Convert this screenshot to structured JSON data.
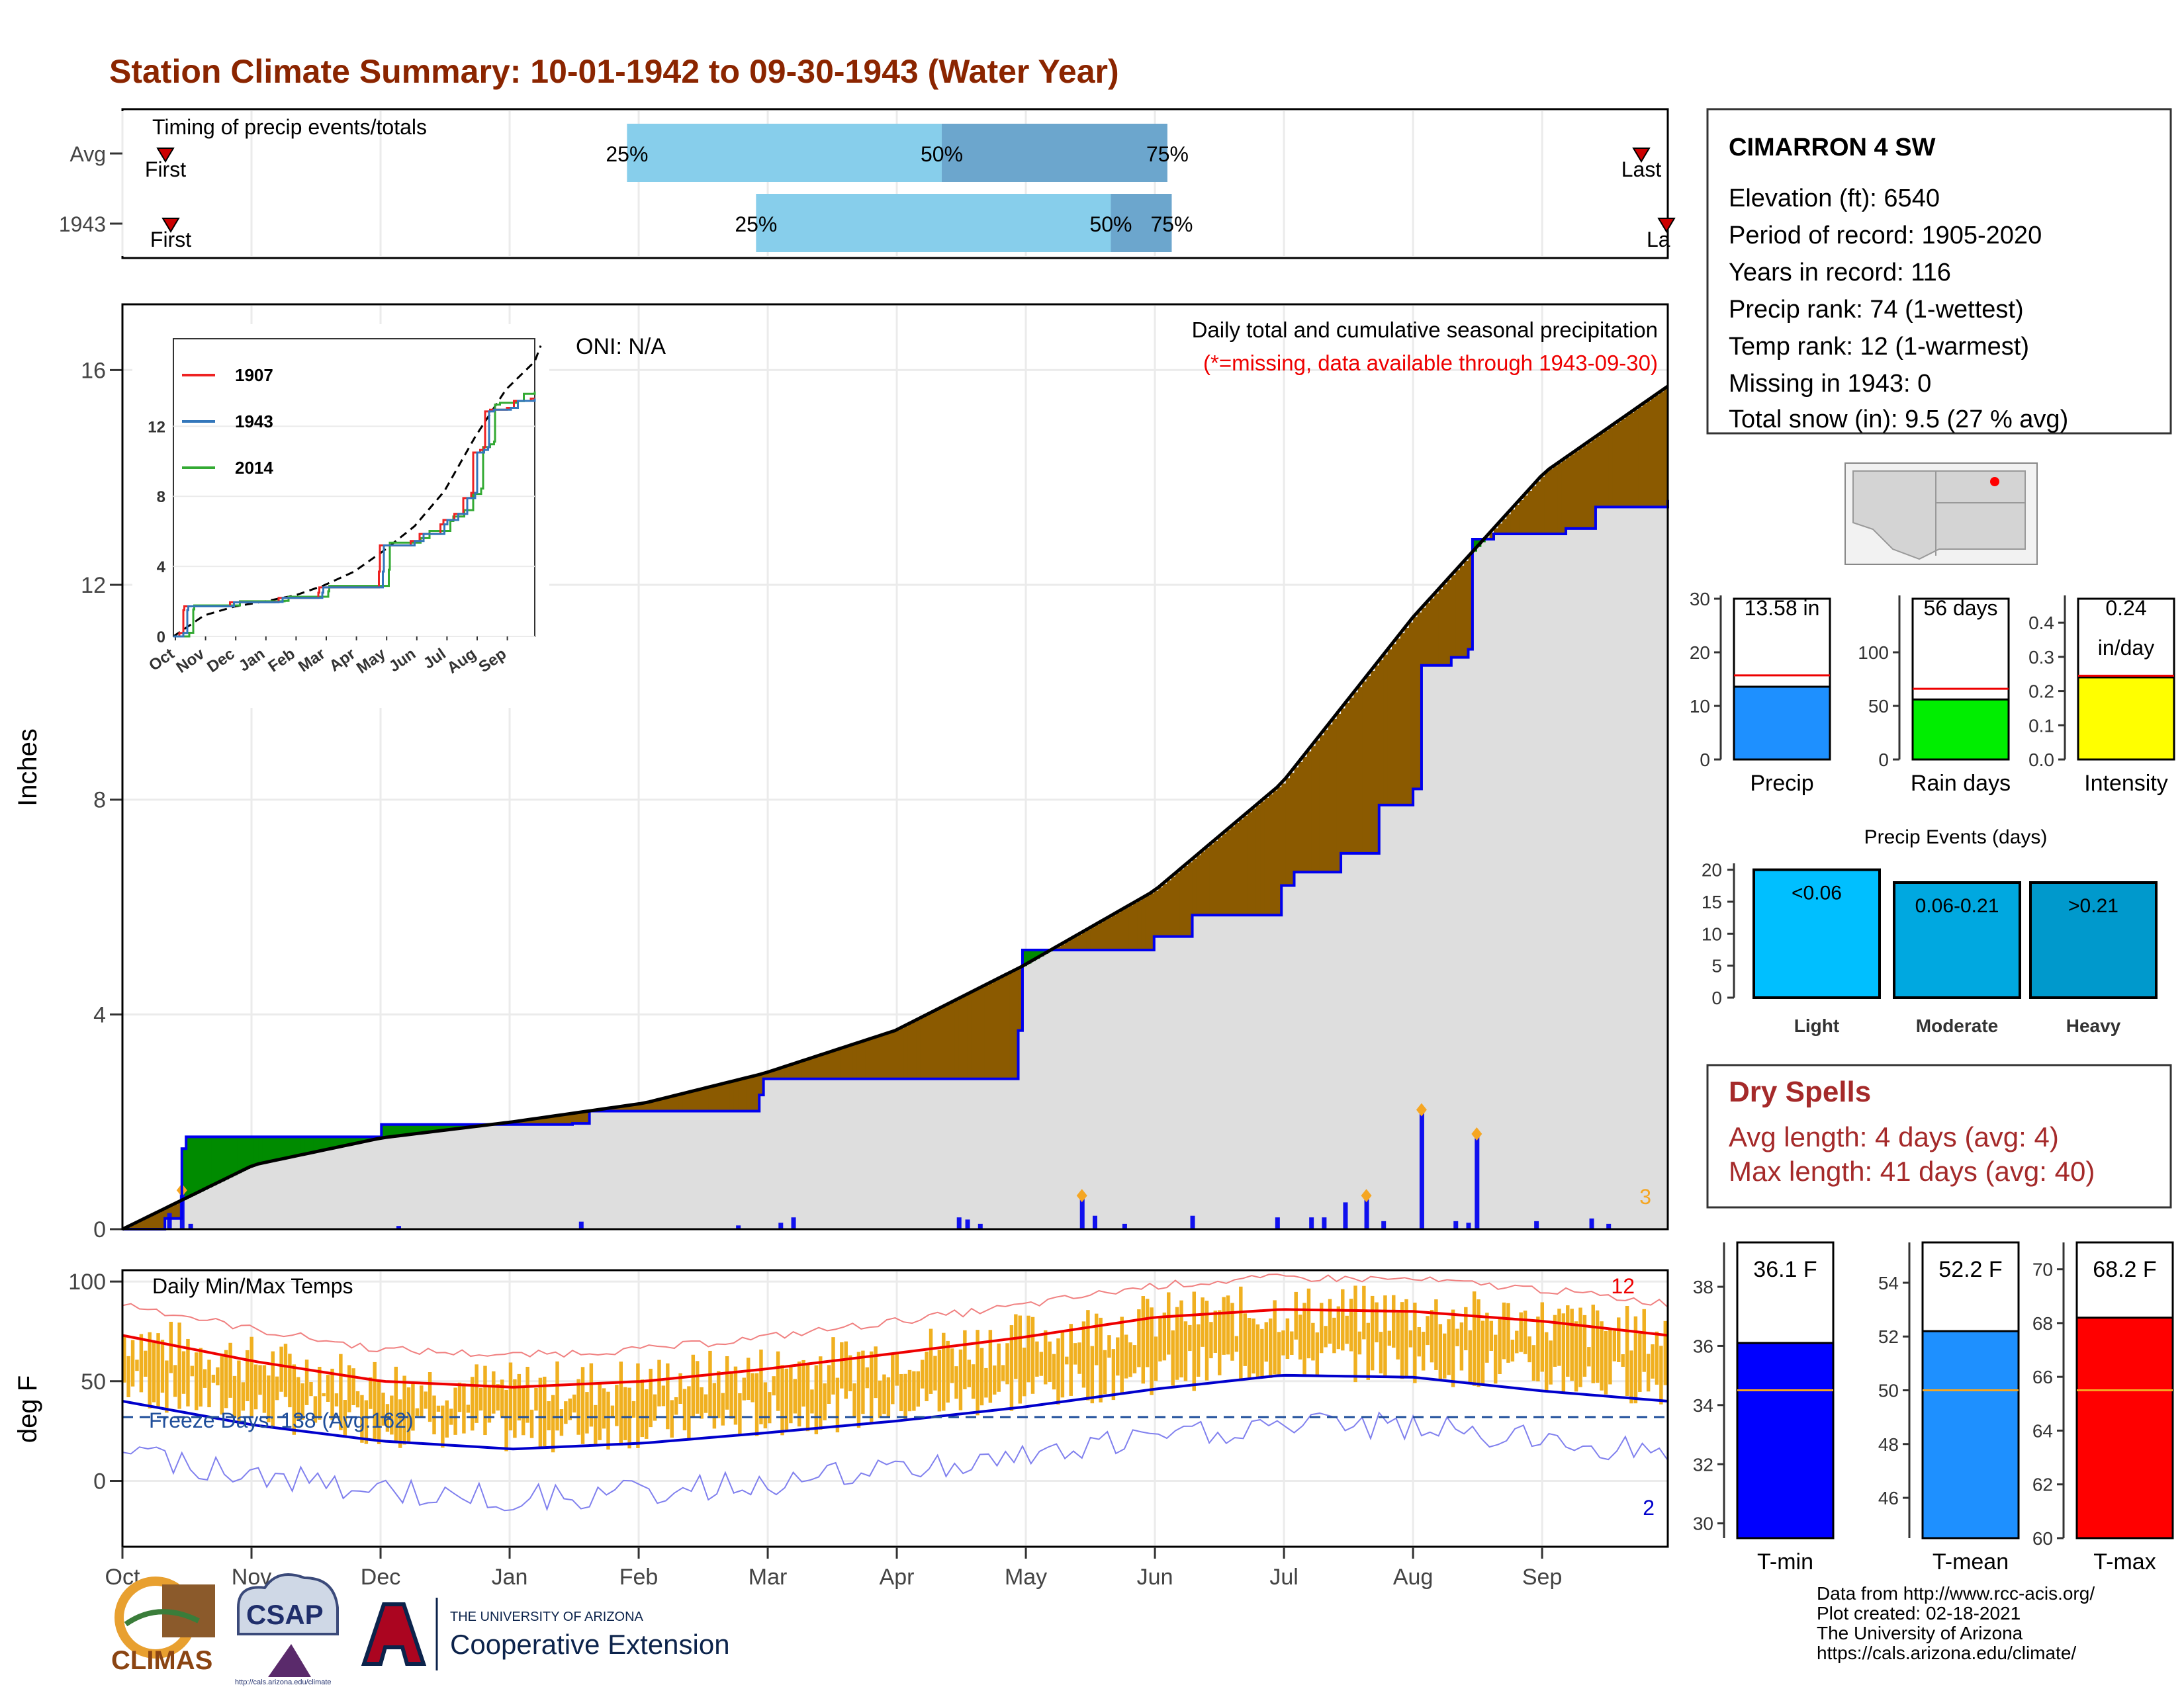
{
  "page": {
    "title": "Station Climate Summary: 10-01-1942 to 09-30-1943 (Water Year)"
  },
  "timing": {
    "label": "Timing of precip events/totals",
    "rows": [
      {
        "name": "Avg",
        "first_label": "First",
        "last_label": "Last",
        "p25": 0.3265,
        "p50": 0.5302,
        "p75": 0.6762
      },
      {
        "name": "1943",
        "first_label": "First",
        "last_label": "La",
        "p25": 0.41,
        "p50": 0.6396,
        "p75": 0.679
      }
    ],
    "pct_labels": [
      "25%",
      "50%",
      "75%"
    ],
    "colors": {
      "light": "#87CEEB",
      "dark": "#6CA6CD",
      "marker": "#CC0000"
    }
  },
  "precip_panel": {
    "ylabel": "Inches",
    "yticks": [
      "0",
      "4",
      "8",
      "12",
      "16"
    ],
    "ylim": [
      0,
      17.2
    ],
    "annotation_title": "Daily total and cumulative seasonal precipitation",
    "annotation_missing": "(*=missing, data available through 1943-09-30)",
    "oni": "ONI: N/A",
    "missing_count": "3",
    "colors": {
      "above": "#8B5A00",
      "below": "#008B00",
      "fill": "#DEDEDE",
      "line": "#0000EE"
    }
  },
  "inset": {
    "yticks": [
      "0",
      "4",
      "8",
      "12"
    ],
    "months": [
      "Oct",
      "Nov",
      "Dec",
      "Jan",
      "Feb",
      "Mar",
      "Apr",
      "May",
      "Jun",
      "Jul",
      "Aug",
      "Sep"
    ],
    "legend": [
      {
        "name": "1907",
        "color": "#EE2222"
      },
      {
        "name": "1943",
        "color": "#3377BB"
      },
      {
        "name": "2014",
        "color": "#33AA33"
      }
    ]
  },
  "temp_panel": {
    "ylabel": "deg F",
    "title": "Daily Min/Max Temps",
    "yticks": [
      "0",
      "50",
      "100"
    ],
    "freeze": "Freeze Days: 138 (Avg:162)",
    "record_high_count": "12",
    "record_low_count": "2",
    "colors": {
      "bars": "#F0B020",
      "max_avg": "#EE0000",
      "min_avg": "#0000CC"
    }
  },
  "months": [
    "Oct",
    "Nov",
    "Dec",
    "Jan",
    "Feb",
    "Mar",
    "Apr",
    "May",
    "Jun",
    "Jul",
    "Aug",
    "Sep"
  ],
  "station": {
    "name": "CIMARRON 4 SW",
    "lines": [
      "Elevation (ft): 6540",
      "Period of record: 1905-2020",
      "Years in record: 116",
      "Precip rank: 74 (1-wettest)",
      "Temp rank: 12 (1-warmest)",
      "Missing in 1943: 0",
      "Total snow (in): 9.5 (27 % avg)"
    ]
  },
  "stat_bars": [
    {
      "label": "Precip",
      "value_label": "13.58 in",
      "value": 13.58,
      "avg": 15.7,
      "ymax": 30,
      "yticks": [
        "0",
        "10",
        "20",
        "30"
      ],
      "color": "#1E90FF"
    },
    {
      "label": "Rain days",
      "value_label": "56 days",
      "value": 56,
      "avg": 66,
      "ymax": 150,
      "yticks": [
        "0",
        "50",
        "100"
      ],
      "color": "#00EE00"
    },
    {
      "label": "Intensity",
      "value_label": "0.24",
      "value_label2": "in/day",
      "value": 0.24,
      "avg": 0.245,
      "ymax": 0.47,
      "yticks": [
        "0.0",
        "0.1",
        "0.2",
        "0.3",
        "0.4"
      ],
      "color": "#FFFF00"
    }
  ],
  "events": {
    "title": "Precip Events (days)",
    "yticks": [
      "0",
      "5",
      "10",
      "15",
      "20"
    ],
    "bars": [
      {
        "label": "Light",
        "value_label": "<0.06",
        "value": 20,
        "color": "#00BFFF"
      },
      {
        "label": "Moderate",
        "value_label": "0.06-0.21",
        "value": 18,
        "color": "#00A8E0"
      },
      {
        "label": "Heavy",
        "value_label": ">0.21",
        "value": 18,
        "color": "#0099CC"
      }
    ]
  },
  "dry_spells": {
    "title": "Dry Spells",
    "avg": "Avg length: 4 days (avg: 4)",
    "max": "Max length: 41 days (avg: 40)"
  },
  "temp_bars": [
    {
      "label": "T-min",
      "value_label": "36.1 F",
      "value": 36.1,
      "avg": 34.5,
      "ymin": 29.5,
      "ymax": 39.5,
      "yticks": [
        "30",
        "32",
        "34",
        "36",
        "38"
      ],
      "color": "#0000FF"
    },
    {
      "label": "T-mean",
      "value_label": "52.2 F",
      "value": 52.2,
      "avg": 50.0,
      "ymin": 44.5,
      "ymax": 55.5,
      "yticks": [
        "46",
        "48",
        "50",
        "52",
        "54"
      ],
      "color": "#1E90FF"
    },
    {
      "label": "T-max",
      "value_label": "68.2 F",
      "value": 68.2,
      "avg": 65.5,
      "ymin": 60,
      "ymax": 71,
      "yticks": [
        "60",
        "62",
        "64",
        "66",
        "68",
        "70"
      ],
      "color": "#FF0000"
    }
  ],
  "credits": [
    "Data from http://www.rcc-acis.org/",
    "Plot created: 02-18-2021",
    "The University of Arizona",
    "https://cals.arizona.edu/climate/"
  ],
  "logos": {
    "climas": "CLIMAS",
    "csap": "CSAP",
    "csap_url": "http://cals.arizona.edu/climate",
    "ua_small": "THE UNIVERSITY OF ARIZONA",
    "ua_big": "Cooperative Extension"
  },
  "chart_data": {
    "type": "area",
    "precip_cumulative_1943": {
      "x": [
        "1942-10-01",
        "1942-10-11",
        "1942-10-15",
        "1942-10-16",
        "1942-11-30",
        "1942-12-01",
        "1943-01-15",
        "1943-01-19",
        "1943-02-28",
        "1943-03-01",
        "1943-04-30",
        "1943-05-01",
        "1943-06-01",
        "1943-06-10",
        "1943-07-01",
        "1943-07-04",
        "1943-07-15",
        "1943-07-24",
        "1943-08-01",
        "1943-08-03",
        "1943-08-10",
        "1943-08-14",
        "1943-08-15",
        "1943-08-20",
        "1943-09-06",
        "1943-09-13",
        "1943-09-30"
      ],
      "y": [
        0.0,
        0.2,
        1.5,
        1.72,
        1.72,
        1.95,
        1.97,
        2.2,
        2.5,
        2.8,
        3.7,
        5.2,
        5.45,
        5.85,
        6.4,
        6.65,
        7.0,
        7.9,
        8.2,
        10.5,
        10.65,
        10.8,
        12.85,
        12.95,
        13.05,
        13.45,
        13.58
      ]
    },
    "precip_cumulative_avg": {
      "x": [
        "1942-10-01",
        "1942-11-01",
        "1942-12-01",
        "1943-01-01",
        "1943-02-01",
        "1943-03-01",
        "1943-04-01",
        "1943-05-01",
        "1943-06-01",
        "1943-07-01",
        "1943-08-01",
        "1943-09-01",
        "1943-09-30"
      ],
      "y": [
        0.0,
        1.2,
        1.7,
        2.0,
        2.35,
        2.9,
        3.7,
        4.9,
        6.3,
        8.3,
        11.4,
        14.1,
        15.7
      ]
    },
    "daily_precip_1943": {
      "x": [
        "1942-10-12",
        "1942-10-15",
        "1942-10-17",
        "1942-12-05",
        "1943-01-17",
        "1943-02-23",
        "1943-03-05",
        "1943-03-08",
        "1943-04-16",
        "1943-04-18",
        "1943-04-21",
        "1943-05-15",
        "1943-05-18",
        "1943-05-25",
        "1943-06-10",
        "1943-06-30",
        "1943-07-08",
        "1943-07-11",
        "1943-07-16",
        "1943-07-21",
        "1943-07-25",
        "1943-08-03",
        "1943-08-11",
        "1943-08-14",
        "1943-08-16",
        "1943-08-30",
        "1943-09-12",
        "1943-09-16"
      ],
      "y": [
        0.3,
        0.7,
        0.1,
        0.06,
        0.14,
        0.07,
        0.12,
        0.22,
        0.22,
        0.18,
        0.1,
        0.6,
        0.25,
        0.1,
        0.25,
        0.22,
        0.22,
        0.22,
        0.5,
        0.6,
        0.15,
        2.2,
        0.15,
        0.12,
        1.75,
        0.15,
        0.2,
        0.1
      ]
    },
    "temp_normals": {
      "x": [
        "1942-10-01",
        "1942-11-01",
        "1942-12-01",
        "1943-01-01",
        "1943-02-01",
        "1943-03-01",
        "1943-04-01",
        "1943-05-01",
        "1943-06-01",
        "1943-07-01",
        "1943-08-01",
        "1943-09-01",
        "1943-09-30"
      ],
      "avg_max": [
        73,
        60,
        50,
        47,
        50,
        56,
        64,
        72,
        82,
        86,
        85,
        80,
        73
      ],
      "avg_min": [
        40,
        28,
        20,
        16,
        19,
        24,
        30,
        37,
        46,
        53,
        52,
        45,
        40
      ]
    },
    "ylim_precip": [
      0,
      17.2
    ],
    "ylim_temp": [
      -33,
      105
    ]
  }
}
